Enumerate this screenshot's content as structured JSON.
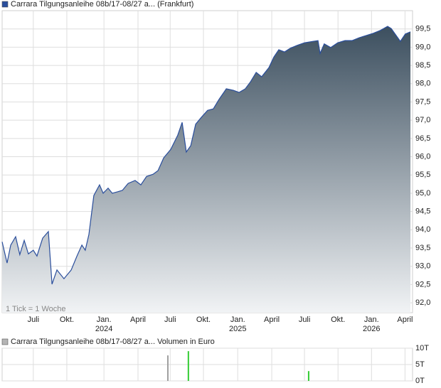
{
  "chart_data": [
    {
      "type": "area",
      "series": [
        {
          "name": "Carrara Tilgungsanleihe 08b/17-08/27 a... (Frankfurt)",
          "color": "#2a4e9c"
        }
      ],
      "annotation": "1 Tick = 1 Woche",
      "x": [
        0,
        1.9,
        3.3,
        5.2,
        6.8,
        8.5,
        10.1,
        12.0,
        13.4,
        15.6,
        17.8,
        19.2,
        21.1,
        23.8,
        26.6,
        28.8,
        30.7,
        32.0,
        33.4,
        35.3,
        37.5,
        38.9,
        40.8,
        42.4,
        44.4,
        46.3,
        48.5,
        51.2,
        53.4,
        55.6,
        58.1,
        60.0,
        62.2,
        64.9,
        67.6,
        69.3,
        70.9,
        72.6,
        74.5,
        76.7,
        79.1,
        81.3,
        83.5,
        86.3,
        89.0,
        91.2,
        93.6,
        95.6,
        97.8,
        99.9,
        102.7,
        104.6,
        106.5,
        108.7,
        110.9,
        113.6,
        116.4,
        119.7,
        121.6,
        122.4,
        124.0,
        126.5,
        129.2,
        132.0,
        134.7,
        137.5,
        140.2,
        142.9,
        145.6,
        148.4,
        149.8,
        153.3,
        155.2,
        157.2
      ],
      "values": [
        93.67,
        93.09,
        93.58,
        93.81,
        93.32,
        93.71,
        93.34,
        93.44,
        93.28,
        93.77,
        93.95,
        92.51,
        92.9,
        92.66,
        92.9,
        93.28,
        93.58,
        93.44,
        93.87,
        94.94,
        95.23,
        95.0,
        95.14,
        95.0,
        95.04,
        95.08,
        95.27,
        95.35,
        95.23,
        95.46,
        95.52,
        95.62,
        95.97,
        96.2,
        96.59,
        96.94,
        96.13,
        96.3,
        96.89,
        97.08,
        97.27,
        97.31,
        97.57,
        97.86,
        97.82,
        97.76,
        97.86,
        98.05,
        98.31,
        98.19,
        98.44,
        98.73,
        98.93,
        98.87,
        98.97,
        99.05,
        99.12,
        99.16,
        99.18,
        98.83,
        99.09,
        98.99,
        99.12,
        99.18,
        99.18,
        99.26,
        99.32,
        99.38,
        99.46,
        99.57,
        99.51,
        99.16,
        99.36,
        99.42
      ],
      "xlim": [
        0,
        158
      ],
      "xticks": [
        {
          "value": 12.0,
          "label": "Juli"
        },
        {
          "value": 24.9,
          "label": "Okt."
        },
        {
          "value": 39.2,
          "label": "Jan."
        },
        {
          "value": 52.3,
          "label": "April"
        },
        {
          "value": 64.7,
          "label": "Juli"
        },
        {
          "value": 77.5,
          "label": "Okt."
        },
        {
          "value": 90.7,
          "label": "Jan."
        },
        {
          "value": 103.8,
          "label": "April"
        },
        {
          "value": 116.4,
          "label": "Juli"
        },
        {
          "value": 129.3,
          "label": "Okt."
        },
        {
          "value": 142.2,
          "label": "Jan."
        },
        {
          "value": 155.1,
          "label": "April"
        }
      ],
      "year_labels": [
        {
          "value": 39.2,
          "label": "2024"
        },
        {
          "value": 90.7,
          "label": "2025"
        },
        {
          "value": 142.2,
          "label": "2026"
        }
      ],
      "ylim": [
        91.73,
        100.0
      ],
      "yticks": [
        {
          "value": 92.0,
          "label": "92,0"
        },
        {
          "value": 92.5,
          "label": "92,5"
        },
        {
          "value": 93.0,
          "label": "93,0"
        },
        {
          "value": 93.5,
          "label": "93,5"
        },
        {
          "value": 94.0,
          "label": "94,0"
        },
        {
          "value": 94.5,
          "label": "94,5"
        },
        {
          "value": 95.0,
          "label": "95,0"
        },
        {
          "value": 95.5,
          "label": "95,5"
        },
        {
          "value": 96.0,
          "label": "96,0"
        },
        {
          "value": 96.5,
          "label": "96,5"
        },
        {
          "value": 97.0,
          "label": "97,0"
        },
        {
          "value": 97.5,
          "label": "97,5"
        },
        {
          "value": 98.0,
          "label": "98,0"
        },
        {
          "value": 98.5,
          "label": "98,5"
        },
        {
          "value": 99.0,
          "label": "99,0"
        },
        {
          "value": 99.5,
          "label": "99,5"
        }
      ],
      "grid": true
    },
    {
      "type": "bar",
      "series": [
        {
          "name": "Carrara Tilgungsanleihe 08b/17-08/27 a... Volumen in Euro",
          "color": "#b4b4b4"
        }
      ],
      "x": [
        63.8,
        71.7,
        118.0
      ],
      "values": [
        7800,
        9100,
        3000
      ],
      "colors": [
        "#a0a0a0",
        "#33cc33",
        "#33cc33"
      ],
      "xlim": [
        0,
        158
      ],
      "ylim": [
        0,
        10000
      ],
      "yticks": [
        {
          "value": 0,
          "label": "0T"
        },
        {
          "value": 5000,
          "label": "5T"
        },
        {
          "value": 10000,
          "label": "10T"
        }
      ],
      "grid": true
    }
  ]
}
